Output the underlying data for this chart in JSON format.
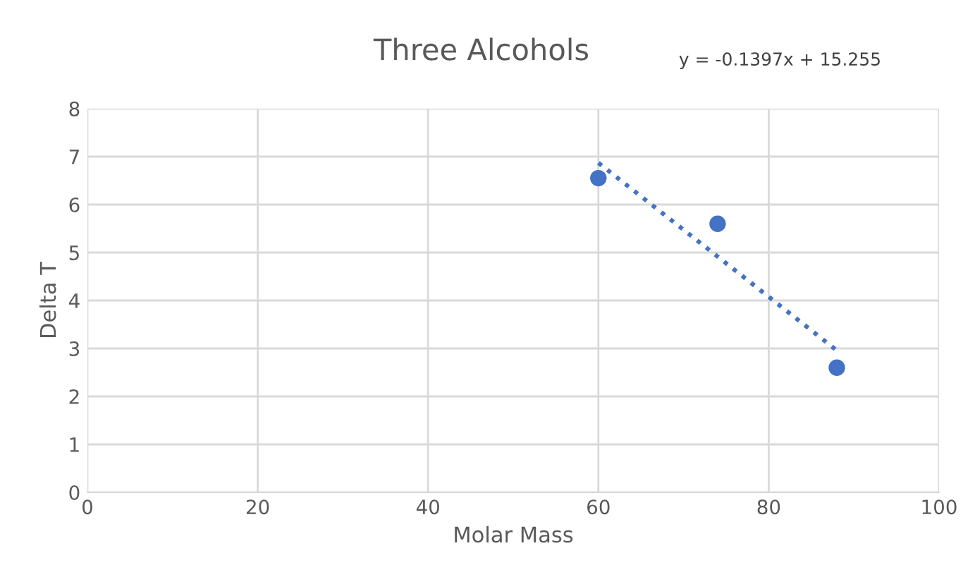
{
  "chart_data": {
    "type": "scatter",
    "title": "Three Alcohols",
    "xlabel": "Molar Mass",
    "ylabel": "Delta T",
    "series": [
      {
        "color": "#4472c4",
        "x": [
          60,
          74,
          88
        ],
        "values": [
          6.55,
          5.6,
          2.6
        ],
        "marker": "circle"
      },
      {
        "type": "line",
        "color": "#4472c4",
        "x": [
          60,
          88
        ],
        "values": [
          6.87,
          2.96
        ],
        "line_style": "dotted",
        "marker": "none"
      }
    ],
    "annotations": [
      "y = -0.1397x + 15.255"
    ],
    "xlim": [
      0,
      100
    ],
    "xticks": [
      0,
      20,
      40,
      60,
      80,
      100
    ],
    "ylim": [
      0,
      8
    ],
    "yticks": [
      0,
      1,
      2,
      3,
      4,
      5,
      6,
      7,
      8
    ],
    "grid": true,
    "legend": false
  }
}
